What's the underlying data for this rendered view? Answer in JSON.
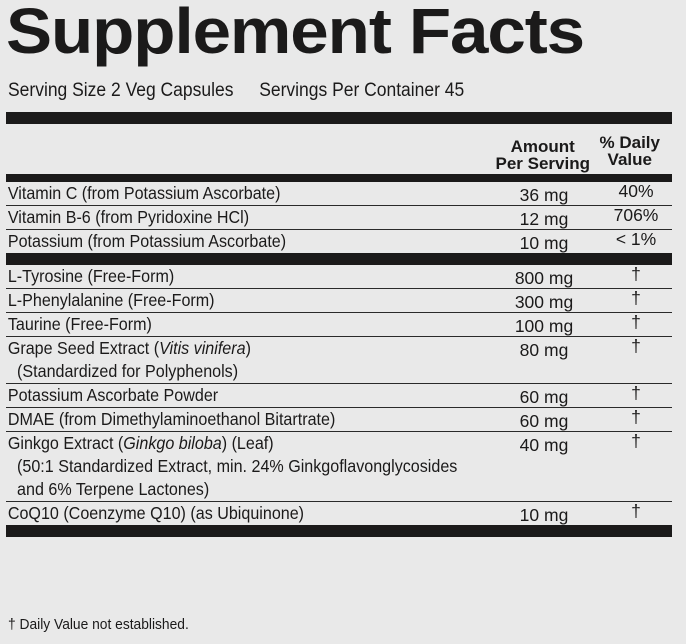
{
  "title": "Supplement Facts",
  "serving_size": "Serving Size 2 Veg Capsules",
  "servings_per_container": "Servings Per Container 45",
  "header": {
    "amount_line1": "Amount",
    "amount_line2": "Per Serving",
    "dv_line1": "% Daily",
    "dv_line2": "Value"
  },
  "vitamins": [
    {
      "lines": [
        [
          {
            "t": "Vitamin C (from Potassium Ascorbate)"
          }
        ]
      ],
      "amount": "36 mg",
      "dv": "40%"
    },
    {
      "lines": [
        [
          {
            "t": "Vitamin B-6 (from Pyridoxine HCl)"
          }
        ]
      ],
      "amount": "12 mg",
      "dv": "706%"
    },
    {
      "lines": [
        [
          {
            "t": "Potassium (from Potassium Ascorbate)"
          }
        ]
      ],
      "amount": "10 mg",
      "dv": "< 1%"
    }
  ],
  "other": [
    {
      "lines": [
        [
          {
            "t": "L-Tyrosine (Free-Form)"
          }
        ]
      ],
      "amount": "800 mg",
      "dv": "†"
    },
    {
      "lines": [
        [
          {
            "t": "L-Phenylalanine (Free-Form)"
          }
        ]
      ],
      "amount": "300 mg",
      "dv": "†"
    },
    {
      "lines": [
        [
          {
            "t": "Taurine (Free-Form)"
          }
        ]
      ],
      "amount": "100 mg",
      "dv": "†"
    },
    {
      "lines": [
        [
          {
            "t": "Grape Seed Extract ("
          },
          {
            "t": "Vitis vinifera",
            "i": true
          },
          {
            "t": ")"
          }
        ],
        [
          {
            "t": "(Standardized for Polyphenols)"
          }
        ]
      ],
      "amount": "80 mg",
      "dv": "†"
    },
    {
      "lines": [
        [
          {
            "t": "Potassium Ascorbate Powder"
          }
        ]
      ],
      "amount": "60 mg",
      "dv": "†"
    },
    {
      "lines": [
        [
          {
            "t": "DMAE (from Dimethylaminoethanol Bitartrate)"
          }
        ]
      ],
      "amount": "60 mg",
      "dv": "†"
    },
    {
      "lines": [
        [
          {
            "t": "Ginkgo Extract ("
          },
          {
            "t": "Ginkgo biloba",
            "i": true
          },
          {
            "t": ") (Leaf)"
          }
        ],
        [
          {
            "t": "(50:1 Standardized Extract, min. 24% Ginkgoflavonglycosides"
          }
        ],
        [
          {
            "t": "and 6% Terpene Lactones)"
          }
        ]
      ],
      "amount": "40 mg",
      "dv": "†"
    },
    {
      "lines": [
        [
          {
            "t": "CoQ10 (Coenzyme Q10) (as Ubiquinone)"
          }
        ]
      ],
      "amount": "10 mg",
      "dv": "†"
    }
  ],
  "footnote": "† Daily Value not established.",
  "colors": {
    "ink": "#1b1a1a",
    "background": "#e9e9e9"
  }
}
